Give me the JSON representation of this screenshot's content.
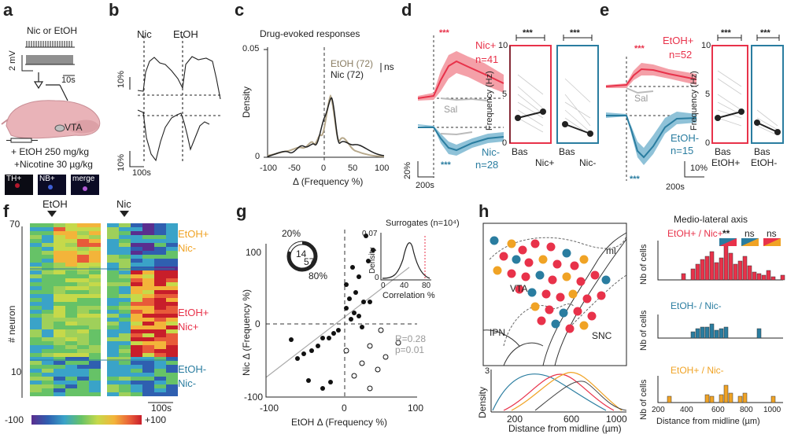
{
  "panels": {
    "a": "a",
    "b": "b",
    "c": "c",
    "d": "d",
    "e": "e",
    "f": "f",
    "g": "g",
    "h": "h"
  },
  "a": {
    "title": "Nic or EtOH",
    "scale_v": "2 mV",
    "scale_t": "10s",
    "region": "VTA",
    "dose1": "+ EtOH 250 mg/kg",
    "dose2": "+Nicotine 30 µg/kg",
    "stains": [
      "TH+",
      "NB+",
      "merge"
    ]
  },
  "b": {
    "nic": "Nic",
    "etoh": "EtOH",
    "scale_top": "10%",
    "scale_bot": "10%",
    "scale_t": "100s"
  },
  "c": {
    "title": "Drug-evoked responses",
    "ylabel": "Density",
    "xlabel": "Δ (Frequency %)",
    "legend_etoh": "EtOH (72)",
    "legend_nic": "Nic (72)",
    "ns": "ns",
    "yticks": [
      "0.05",
      "0"
    ],
    "xticks": [
      "-100",
      "-50",
      "0",
      "50",
      "100"
    ]
  },
  "d": {
    "sig": "***",
    "pos_label": "Nic+",
    "pos_n": "n=41",
    "neg_label": "Nic-",
    "neg_n": "n=28",
    "sal": "Sal",
    "scale_pct": "20%",
    "scale_t": "200s",
    "ylabel": "Frequency (Hz)",
    "yticks": [
      "10",
      "5",
      "0"
    ],
    "box_labels": [
      "Bas",
      "Nic+",
      "Bas",
      "Nic-"
    ]
  },
  "e": {
    "sig": "***",
    "pos_label": "EtOH+",
    "pos_n": "n=52",
    "neg_label": "EtOH-",
    "neg_n": "n=15",
    "sal": "Sal",
    "scale_pct": "10%",
    "scale_t": "200s",
    "ylabel": "Frequency (Hz)",
    "yticks": [
      "10",
      "5",
      "0"
    ],
    "box_labels": [
      "Bas",
      "EtOH+",
      "Bas",
      "EtOH-"
    ]
  },
  "f": {
    "etoh": "EtOH",
    "nic": "Nic",
    "ylabel": "# neuron",
    "yticks": [
      "70",
      "10"
    ],
    "groups": [
      {
        "l1": "EtOH+",
        "l2": "Nic-"
      },
      {
        "l1": "EtOH+",
        "l2": "Nic+"
      },
      {
        "l1": "EtOH-",
        "l2": "Nic-"
      }
    ],
    "scale_t": "100s",
    "cbar_min": "-100",
    "cbar_max": "+100"
  },
  "g": {
    "pct_a": "20%",
    "pct_b": "80%",
    "n_a": "14",
    "n_b": "57",
    "ylabel": "Nic Δ (Frequency %)",
    "xlabel": "EtOH Δ (Frequency %)",
    "xticks": [
      "-100",
      "0",
      "100"
    ],
    "yticks": [
      "100",
      "0",
      "-100"
    ],
    "inset_title": "Surrogates (n=10⁴)",
    "inset_ylabel": "Density",
    "inset_yticks": [
      "0.07",
      "0"
    ],
    "inset_xticks": [
      "0",
      "40",
      "80"
    ],
    "inset_xlabel": "Correlation %",
    "r": "R=0.28",
    "p": "p=0.01"
  },
  "h": {
    "regions": [
      "ml",
      "VTA",
      "IPN",
      "SNC"
    ],
    "density_label": "Density",
    "density_tick": "3",
    "xlabel": "Distance from midline (µm)",
    "xticks": [
      "200",
      "600",
      "1000"
    ],
    "right_title": "Medio-lateral axis",
    "sig": [
      "**",
      "ns",
      "ns"
    ],
    "hist1": "EtOH+ / Nic+",
    "hist2": "EtOH- / Nic-",
    "hist3": "EtOH+ / Nic-",
    "ylabel": "Nb of cells",
    "hxticks": [
      "200",
      "400",
      "600",
      "800",
      "1000"
    ],
    "hyticks": [
      "10",
      "0"
    ]
  },
  "colors": {
    "red": "#e8324a",
    "blue": "#2a7da0",
    "orange": "#f0a325",
    "grey": "#aaaaaa"
  }
}
